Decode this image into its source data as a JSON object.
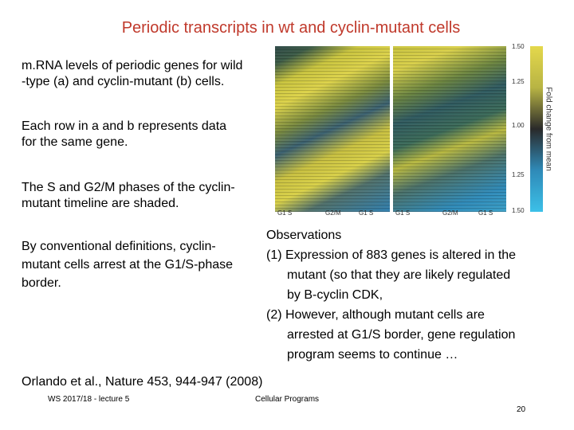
{
  "title": "Periodic transcripts in wt and cyclin-mutant cells",
  "left_paragraphs": [
    [
      "m.RNA levels of periodic genes for wild",
      "-type (a) and cyclin-mutant (b) cells."
    ],
    [
      "Each row in a and b represents data",
      "for the same gene."
    ],
    [
      "The S and G2/M phases of the cyclin-",
      "mutant timeline are shaded."
    ],
    [
      "By conventional definitions, cyclin-",
      "mutant cells arrest at the G1/S-phase",
      "border."
    ]
  ],
  "observations": {
    "heading": "Observations",
    "items": [
      [
        "(1) Expression of 883 genes is altered in the",
        "mutant (so that they are likely regulated",
        "by B-cyclin CDK,"
      ],
      [
        "(2) However, although mutant cells are",
        "arrested at G1/S border, gene regulation",
        "program seems to continue …"
      ]
    ]
  },
  "figure": {
    "colorbar_ticks": [
      "1.50",
      "1.25",
      "1.00",
      "1.25",
      "1.50"
    ],
    "colorbar_label": "Fold change from mean",
    "phase_labels_a": [
      "G1 S",
      "G2/M",
      "G1 S"
    ],
    "phase_labels_b": [
      "G1 S",
      "G2/M",
      "G1 S"
    ]
  },
  "citation": "Orlando et al.,  Nature 453, 944-947  (2008)",
  "footer": {
    "left": "WS 2017/18 - lecture 5",
    "center": "Cellular Programs",
    "page": "20"
  }
}
